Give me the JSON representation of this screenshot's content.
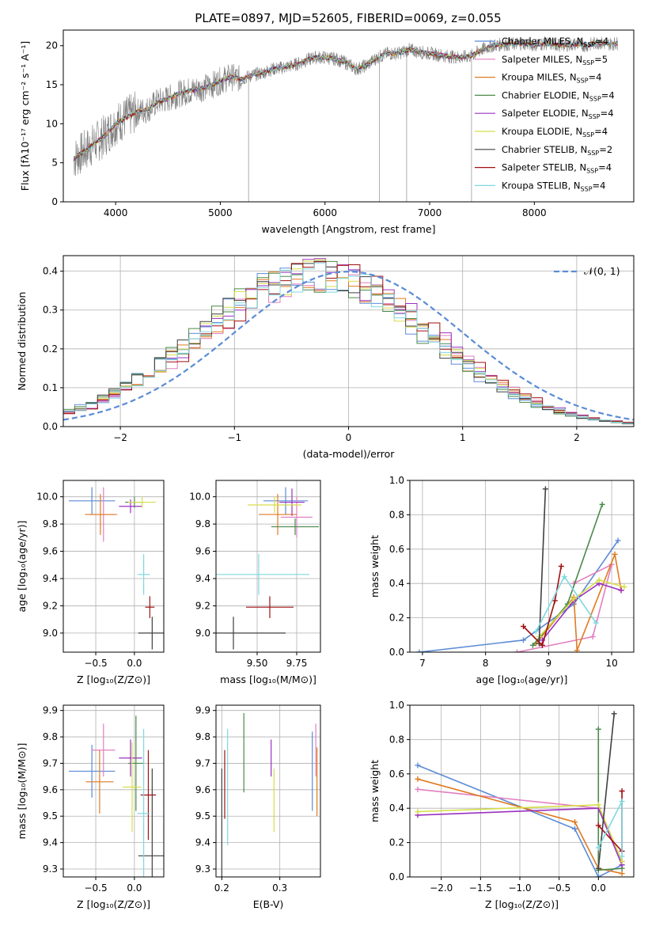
{
  "title": "PLATE=0897, MJD=52605, FIBERID=0069, z=0.055",
  "models": [
    {
      "label": "Chabrier MILES, N",
      "n": "4",
      "color": "#5b8cd6"
    },
    {
      "label": "Salpeter MILES, N",
      "n": "5",
      "color": "#e17fbf"
    },
    {
      "label": "Kroupa MILES, N",
      "n": "4",
      "color": "#e07a20"
    },
    {
      "label": "Chabrier ELODIE, N",
      "n": "4",
      "color": "#4a8a4a"
    },
    {
      "label": "Salpeter ELODIE, N",
      "n": "4",
      "color": "#9a32c0"
    },
    {
      "label": "Kroupa ELODIE, N",
      "n": "4",
      "color": "#d6de4a"
    },
    {
      "label": "Chabrier STELIB, N",
      "n": "2",
      "color": "#404040"
    },
    {
      "label": "Salpeter STELIB, N",
      "n": "4",
      "color": "#a01010"
    },
    {
      "label": "Kroupa STELIB, N",
      "n": "4",
      "color": "#7ed8e0"
    }
  ],
  "ssp_subscript": "SSP",
  "chart_data": [
    {
      "type": "line",
      "xlabel": "wavelength [Angstrom, rest frame]",
      "ylabel": "Flux [fλ10⁻¹⁷ erg cm⁻² s⁻¹ A⁻¹]",
      "xlim": [
        3500,
        8950
      ],
      "ylim": [
        0,
        22
      ],
      "xticks": [
        4000,
        5000,
        6000,
        7000,
        8000
      ],
      "yticks": [
        0,
        5,
        10,
        15,
        20
      ],
      "spectrum": {
        "x": [
          3600,
          3700,
          3800,
          3900,
          4000,
          4100,
          4200,
          4300,
          4400,
          4500,
          4600,
          4700,
          4800,
          4900,
          5000,
          5100,
          5200,
          5300,
          5400,
          5500,
          5600,
          5700,
          5800,
          5900,
          6000,
          6100,
          6200,
          6300,
          6400,
          6500,
          6600,
          6700,
          6800,
          6900,
          7000,
          7100,
          7200,
          7300,
          7400,
          7500,
          7600,
          7700,
          7800,
          7900,
          8000,
          8100,
          8200,
          8300,
          8400,
          8500,
          8600,
          8700,
          8800
        ],
        "y": [
          5.5,
          6.5,
          7.5,
          8.5,
          10.0,
          10.8,
          11.5,
          11.8,
          12.8,
          13.2,
          13.8,
          14.2,
          14.5,
          14.8,
          15.5,
          16.0,
          15.7,
          16.2,
          16.5,
          17.0,
          17.2,
          17.5,
          18.0,
          18.5,
          18.5,
          18.3,
          17.8,
          17.0,
          17.5,
          18.5,
          19.0,
          19.0,
          19.5,
          19.2,
          19.0,
          18.8,
          18.6,
          18.5,
          18.7,
          19.5,
          20.0,
          20.2,
          20.2,
          20.3,
          20.1,
          20.3,
          20.1,
          20.1,
          20.2,
          20.0,
          20.4,
          20.2,
          20.3
        ]
      }
    },
    {
      "type": "step",
      "xlabel": "(data-model)/error",
      "ylabel": "Normed distribution",
      "xlim": [
        -2.5,
        2.5
      ],
      "ylim": [
        0,
        0.44
      ],
      "xticks": [
        -2,
        -1,
        0,
        1,
        2
      ],
      "yticks": [
        0.0,
        0.1,
        0.2,
        0.3,
        0.4
      ],
      "legend": "𝒩(0, 1)",
      "gaussian": {
        "mean": 0,
        "sigma": 1,
        "color": "#5b8cd6"
      }
    },
    {
      "type": "errorbar",
      "xlabel": "Z [log₁₀(Z/Z⊙)]",
      "ylabel": "age  [log₁₀(age/yr)]",
      "xlim": [
        -0.92,
        0.38
      ],
      "ylim": [
        8.86,
        10.12
      ],
      "xticks": [
        -0.5,
        0.0
      ],
      "yticks": [
        9.0,
        9.2,
        9.4,
        9.6,
        9.8,
        10.0
      ],
      "points": [
        {
          "x": -0.55,
          "xe": 0.3,
          "y": 9.97,
          "ye": 0.1,
          "c": "#5b8cd6"
        },
        {
          "x": -0.4,
          "xe": 0.18,
          "y": 9.87,
          "ye": 0.2,
          "c": "#e17fbf"
        },
        {
          "x": -0.44,
          "xe": 0.2,
          "y": 9.87,
          "ye": 0.15,
          "c": "#e07a20"
        },
        {
          "x": 0.0,
          "xe": 0.12,
          "y": 9.96,
          "ye": 0.04,
          "c": "#4a8a4a"
        },
        {
          "x": -0.05,
          "xe": 0.15,
          "y": 9.93,
          "ye": 0.05,
          "c": "#9a32c0"
        },
        {
          "x": 0.1,
          "xe": 0.18,
          "y": 9.96,
          "ye": 0.04,
          "c": "#d6de4a"
        },
        {
          "x": 0.23,
          "xe": 0.18,
          "y": 9.0,
          "ye": 0.12,
          "c": "#404040"
        },
        {
          "x": 0.2,
          "xe": 0.06,
          "y": 9.19,
          "ye": 0.08,
          "c": "#a01010"
        },
        {
          "x": 0.12,
          "xe": 0.08,
          "y": 9.43,
          "ye": 0.15,
          "c": "#7ed8e0"
        }
      ]
    },
    {
      "type": "errorbar",
      "xlabel": "mass [log₁₀(M/M⊙)]",
      "ylabel": "",
      "xlim": [
        9.24,
        9.9
      ],
      "ylim": [
        8.86,
        10.12
      ],
      "xticks": [
        9.5,
        9.75
      ],
      "yticks": [
        9.0,
        9.2,
        9.4,
        9.6,
        9.8,
        10.0
      ],
      "points": [
        {
          "x": 9.68,
          "xe": 0.14,
          "y": 9.97,
          "ye": 0.1,
          "c": "#5b8cd6"
        },
        {
          "x": 9.75,
          "xe": 0.1,
          "y": 9.85,
          "ye": 0.15,
          "c": "#e17fbf"
        },
        {
          "x": 9.63,
          "xe": 0.12,
          "y": 9.87,
          "ye": 0.15,
          "c": "#e07a20"
        },
        {
          "x": 9.74,
          "xe": 0.15,
          "y": 9.78,
          "ye": 0.06,
          "c": "#4a8a4a"
        },
        {
          "x": 9.72,
          "xe": 0.08,
          "y": 9.96,
          "ye": 0.1,
          "c": "#9a32c0"
        },
        {
          "x": 9.61,
          "xe": 0.17,
          "y": 9.94,
          "ye": 0.06,
          "c": "#d6de4a"
        },
        {
          "x": 9.35,
          "xe": 0.33,
          "y": 9.0,
          "ye": 0.12,
          "c": "#404040"
        },
        {
          "x": 9.58,
          "xe": 0.15,
          "y": 9.19,
          "ye": 0.08,
          "c": "#a01010"
        },
        {
          "x": 9.51,
          "xe": 0.32,
          "y": 9.43,
          "ye": 0.15,
          "c": "#7ed8e0"
        }
      ]
    },
    {
      "type": "line",
      "xlabel": "age  [log₁₀(age/yr)]",
      "ylabel": "mass weight",
      "xlim": [
        6.8,
        10.35
      ],
      "ylim": [
        0,
        1.0
      ],
      "xticks": [
        7,
        8,
        9,
        10
      ],
      "yticks": [
        0.0,
        0.2,
        0.4,
        0.6,
        0.8,
        1.0
      ],
      "series": [
        {
          "c": "#5b8cd6",
          "pts": [
            [
              6.95,
              0.0
            ],
            [
              8.6,
              0.07
            ],
            [
              9.4,
              0.28
            ],
            [
              10.1,
              0.65
            ]
          ]
        },
        {
          "c": "#e17fbf",
          "pts": [
            [
              8.5,
              0.0
            ],
            [
              9.7,
              0.09
            ],
            [
              10.0,
              0.51
            ],
            [
              9.4,
              0.4
            ]
          ]
        },
        {
          "c": "#e07a20",
          "pts": [
            [
              8.8,
              0.05
            ],
            [
              9.4,
              0.32
            ],
            [
              9.45,
              0.01
            ],
            [
              10.05,
              0.57
            ],
            [
              10.15,
              0.36
            ]
          ]
        },
        {
          "c": "#4a8a4a",
          "pts": [
            [
              8.75,
              0.04
            ],
            [
              9.3,
              0.28
            ],
            [
              9.85,
              0.86
            ]
          ]
        },
        {
          "c": "#9a32c0",
          "pts": [
            [
              8.9,
              0.07
            ],
            [
              9.4,
              0.3
            ],
            [
              9.8,
              0.4
            ],
            [
              10.15,
              0.36
            ]
          ]
        },
        {
          "c": "#d6de4a",
          "pts": [
            [
              8.85,
              0.09
            ],
            [
              9.4,
              0.31
            ],
            [
              9.8,
              0.42
            ],
            [
              10.2,
              0.38
            ]
          ]
        },
        {
          "c": "#404040",
          "pts": [
            [
              8.85,
              0.05
            ],
            [
              8.95,
              0.95
            ]
          ]
        },
        {
          "c": "#a01010",
          "pts": [
            [
              8.6,
              0.15
            ],
            [
              8.9,
              0.04
            ],
            [
              9.1,
              0.3
            ],
            [
              9.2,
              0.5
            ]
          ]
        },
        {
          "c": "#7ed8e0",
          "pts": [
            [
              8.8,
              0.12
            ],
            [
              9.25,
              0.44
            ],
            [
              9.75,
              0.17
            ]
          ]
        }
      ]
    },
    {
      "type": "errorbar",
      "xlabel": "Z [log₁₀(Z/Z⊙)]",
      "ylabel": "mass [log₁₀(M/M⊙)]",
      "xlim": [
        -0.92,
        0.38
      ],
      "ylim": [
        9.27,
        9.92
      ],
      "xticks": [
        -0.5,
        0.0
      ],
      "yticks": [
        9.3,
        9.4,
        9.5,
        9.6,
        9.7,
        9.8,
        9.9
      ],
      "points": [
        {
          "x": -0.55,
          "xe": 0.3,
          "y": 9.67,
          "ye": 0.1,
          "c": "#5b8cd6"
        },
        {
          "x": -0.4,
          "xe": 0.15,
          "y": 9.75,
          "ye": 0.1,
          "c": "#e17fbf"
        },
        {
          "x": -0.45,
          "xe": 0.18,
          "y": 9.63,
          "ye": 0.12,
          "c": "#e07a20"
        },
        {
          "x": 0.02,
          "xe": 0.1,
          "y": 9.7,
          "ye": 0.18,
          "c": "#4a8a4a"
        },
        {
          "x": -0.05,
          "xe": 0.15,
          "y": 9.72,
          "ye": 0.07,
          "c": "#9a32c0"
        },
        {
          "x": -0.03,
          "xe": 0.12,
          "y": 9.61,
          "ye": 0.17,
          "c": "#d6de4a"
        },
        {
          "x": 0.23,
          "xe": 0.18,
          "y": 9.35,
          "ye": 0.33,
          "c": "#404040"
        },
        {
          "x": 0.18,
          "xe": 0.1,
          "y": 9.58,
          "ye": 0.17,
          "c": "#a01010"
        },
        {
          "x": 0.12,
          "xe": 0.08,
          "y": 9.51,
          "ye": 0.32,
          "c": "#7ed8e0"
        }
      ]
    },
    {
      "type": "errorbar",
      "xlabel": "E(B-V)",
      "ylabel": "",
      "xlim": [
        0.19,
        0.37
      ],
      "ylim": [
        9.27,
        9.92
      ],
      "xticks": [
        0.2,
        0.3
      ],
      "yticks": [
        9.3,
        9.4,
        9.5,
        9.6,
        9.7,
        9.8,
        9.9
      ],
      "points": [
        {
          "x": 0.356,
          "xe": 0,
          "y": 9.67,
          "ye": 0.15,
          "c": "#5b8cd6"
        },
        {
          "x": 0.362,
          "xe": 0,
          "y": 9.75,
          "ye": 0.1,
          "c": "#e17fbf"
        },
        {
          "x": 0.364,
          "xe": 0,
          "y": 9.63,
          "ye": 0.13,
          "c": "#e07a20"
        },
        {
          "x": 0.238,
          "xe": 0,
          "y": 9.74,
          "ye": 0.15,
          "c": "#4a8a4a"
        },
        {
          "x": 0.285,
          "xe": 0,
          "y": 9.72,
          "ye": 0.07,
          "c": "#9a32c0"
        },
        {
          "x": 0.29,
          "xe": 0,
          "y": 9.56,
          "ye": 0.12,
          "c": "#d6de4a"
        },
        {
          "x": 0.2,
          "xe": 0,
          "y": 9.45,
          "ye": 0.23,
          "c": "#404040"
        },
        {
          "x": 0.205,
          "xe": 0,
          "y": 9.62,
          "ye": 0.13,
          "c": "#a01010"
        },
        {
          "x": 0.21,
          "xe": 0,
          "y": 9.61,
          "ye": 0.22,
          "c": "#7ed8e0"
        }
      ]
    },
    {
      "type": "line",
      "xlabel": "Z [log₁₀(Z/Z⊙)]",
      "ylabel": "mass weight",
      "xlim": [
        -2.4,
        0.45
      ],
      "ylim": [
        0,
        1.0
      ],
      "xticks": [
        -2.0,
        -1.5,
        -1.0,
        -0.5,
        0.0
      ],
      "yticks": [
        0.0,
        0.2,
        0.4,
        0.6,
        0.8,
        1.0
      ],
      "series": [
        {
          "c": "#5b8cd6",
          "pts": [
            [
              -2.3,
              0.65
            ],
            [
              -0.3,
              0.28
            ],
            [
              0.0,
              0.0
            ],
            [
              0.3,
              0.07
            ]
          ]
        },
        {
          "c": "#e17fbf",
          "pts": [
            [
              -2.3,
              0.51
            ],
            [
              0.0,
              0.4
            ],
            [
              0.3,
              0.09
            ]
          ]
        },
        {
          "c": "#e07a20",
          "pts": [
            [
              -2.3,
              0.57
            ],
            [
              -0.3,
              0.32
            ],
            [
              0.0,
              0.05
            ],
            [
              0.3,
              0.02
            ]
          ]
        },
        {
          "c": "#4a8a4a",
          "pts": [
            [
              0.0,
              0.86
            ],
            [
              0.0,
              0.04
            ],
            [
              0.3,
              0.05
            ]
          ]
        },
        {
          "c": "#9a32c0",
          "pts": [
            [
              -2.3,
              0.36
            ],
            [
              0.0,
              0.4
            ],
            [
              0.3,
              0.07
            ]
          ]
        },
        {
          "c": "#d6de4a",
          "pts": [
            [
              -2.3,
              0.38
            ],
            [
              0.0,
              0.42
            ],
            [
              0.3,
              0.09
            ]
          ]
        },
        {
          "c": "#404040",
          "pts": [
            [
              0.0,
              0.05
            ],
            [
              0.2,
              0.95
            ]
          ]
        },
        {
          "c": "#a01010",
          "pts": [
            [
              0.0,
              0.3
            ],
            [
              0.3,
              0.15
            ],
            [
              0.3,
              0.5
            ]
          ]
        },
        {
          "c": "#7ed8e0",
          "pts": [
            [
              0.0,
              0.17
            ],
            [
              0.3,
              0.44
            ],
            [
              0.3,
              0.12
            ]
          ]
        }
      ]
    }
  ]
}
